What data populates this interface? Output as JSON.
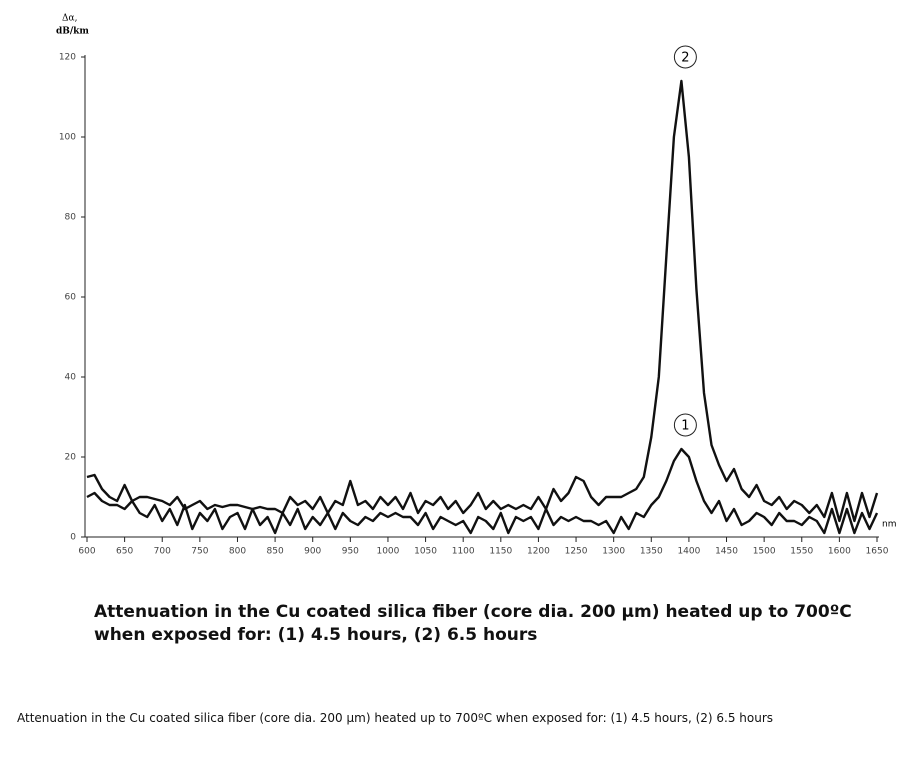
{
  "chart_data": {
    "type": "line",
    "y_label": [
      "Δα,",
      "dB/km"
    ],
    "x_label": "nm",
    "caption": [
      "Attenuation in the Cu coated silica fiber (core dia. 200 µm) heated up to 700ºC",
      "when exposed for:  (1) 4.5 hours, (2)  6.5 hours"
    ],
    "footnote": "Attenuation in the Cu coated silica fiber (core dia. 200 µm) heated up to 700ºC when exposed for: (1) 4.5 hours, (2) 6.5 hours",
    "x": [
      600,
      610,
      620,
      630,
      640,
      650,
      660,
      670,
      680,
      690,
      700,
      710,
      720,
      730,
      740,
      750,
      760,
      770,
      780,
      790,
      800,
      810,
      820,
      830,
      840,
      850,
      860,
      870,
      880,
      890,
      900,
      910,
      920,
      930,
      940,
      950,
      960,
      970,
      980,
      990,
      1000,
      1010,
      1020,
      1030,
      1040,
      1050,
      1060,
      1070,
      1080,
      1090,
      1100,
      1110,
      1120,
      1130,
      1140,
      1150,
      1160,
      1170,
      1180,
      1190,
      1200,
      1210,
      1220,
      1230,
      1240,
      1250,
      1260,
      1270,
      1280,
      1290,
      1300,
      1310,
      1320,
      1330,
      1340,
      1350,
      1360,
      1370,
      1380,
      1390,
      1400,
      1410,
      1420,
      1430,
      1440,
      1450,
      1460,
      1470,
      1480,
      1490,
      1500,
      1510,
      1520,
      1530,
      1540,
      1550,
      1560,
      1570,
      1580,
      1590,
      1600,
      1610,
      1620,
      1630,
      1640,
      1650
    ],
    "series": [
      {
        "name": "1",
        "color": "#111111",
        "values": [
          10,
          11,
          9,
          8,
          8,
          7,
          9,
          6,
          5,
          8,
          4,
          7,
          3,
          8,
          2,
          6,
          4,
          7,
          2,
          5,
          6,
          2,
          7,
          3,
          5,
          1,
          6,
          3,
          7,
          2,
          5,
          3,
          6,
          2,
          6,
          4,
          3,
          5,
          4,
          6,
          5,
          6,
          5,
          5,
          3,
          6,
          2,
          5,
          4,
          3,
          4,
          1,
          5,
          4,
          2,
          6,
          1,
          5,
          4,
          5,
          2,
          7,
          3,
          5,
          4,
          5,
          4,
          4,
          3,
          4,
          1,
          5,
          2,
          6,
          5,
          8,
          10,
          14,
          19,
          22,
          20,
          14,
          9,
          6,
          9,
          4,
          7,
          3,
          4,
          6,
          5,
          3,
          6,
          4,
          4,
          3,
          5,
          4,
          1,
          7,
          1,
          7,
          1,
          6,
          2,
          6
        ]
      },
      {
        "name": "2",
        "color": "#111111",
        "values": [
          15,
          15.5,
          12,
          10,
          9,
          13,
          9,
          10,
          10,
          9.5,
          9,
          8,
          10,
          7,
          8,
          9,
          7,
          8,
          7.5,
          8,
          8,
          7.5,
          7,
          7.5,
          7,
          7,
          6,
          10,
          8,
          9,
          7,
          10,
          6,
          9,
          8,
          14,
          8,
          9,
          7,
          10,
          8,
          10,
          7,
          11,
          6,
          9,
          8,
          10,
          7,
          9,
          6,
          8,
          11,
          7,
          9,
          7,
          8,
          7,
          8,
          7,
          10,
          7,
          12,
          9,
          11,
          15,
          14,
          10,
          8,
          10,
          10,
          10,
          11,
          12,
          15,
          25,
          40,
          70,
          100,
          114,
          95,
          62,
          36,
          23,
          18,
          14,
          17,
          12,
          10,
          13,
          9,
          8,
          10,
          7,
          9,
          8,
          6,
          8,
          5,
          11,
          4,
          11,
          4,
          11,
          5,
          11
        ]
      }
    ],
    "xlim": [
      600,
      1650
    ],
    "ylim": [
      0,
      120
    ],
    "xticks": [
      600,
      650,
      700,
      750,
      800,
      850,
      900,
      950,
      1000,
      1050,
      1100,
      1150,
      1200,
      1250,
      1300,
      1350,
      1400,
      1450,
      1500,
      1550,
      1600,
      1650
    ],
    "yticks": [
      0,
      20,
      40,
      60,
      80,
      100,
      120
    ]
  }
}
